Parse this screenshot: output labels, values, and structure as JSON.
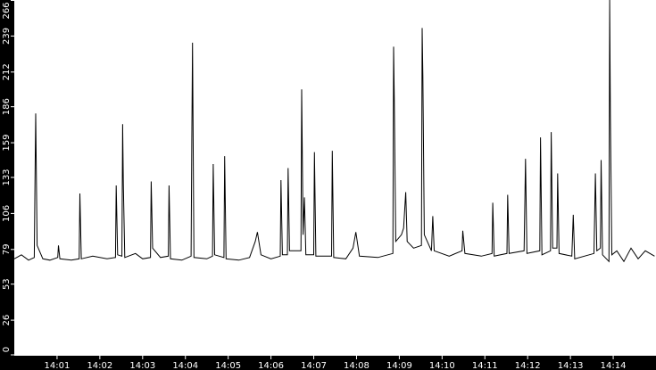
{
  "chart_data": {
    "type": "line",
    "title": "",
    "xlabel": "",
    "ylabel": "",
    "ylim": [
      0,
      266
    ],
    "xlim": [
      "14:00:00",
      "14:15:00"
    ],
    "grid": false,
    "legend": "none",
    "y_ticks": [
      "0",
      "26",
      "53",
      "79",
      "106",
      "133",
      "159",
      "186",
      "212",
      "239",
      "266"
    ],
    "x_ticks": [
      "14:01",
      "14:02",
      "14:03",
      "14:04",
      "14:05",
      "14:06",
      "14:07",
      "14:08",
      "14:09",
      "14:10",
      "14:11",
      "14:12",
      "14:13",
      "14:14"
    ],
    "colors": {
      "axis_background": "#000000",
      "plot_background": "#ffffff",
      "line": "#000000",
      "tick_text": "#ffffff"
    },
    "series": [
      {
        "points": [
          [
            "14:00:00",
            72
          ],
          [
            "14:00:10",
            75
          ],
          [
            "14:00:20",
            71
          ],
          [
            "14:00:28",
            73
          ],
          [
            "14:00:29",
            130
          ],
          [
            "14:00:30",
            181
          ],
          [
            "14:00:32",
            82
          ],
          [
            "14:00:40",
            72
          ],
          [
            "14:00:50",
            71
          ],
          [
            "14:01:01",
            73
          ],
          [
            "14:01:02",
            82
          ],
          [
            "14:01:04",
            72
          ],
          [
            "14:01:20",
            71
          ],
          [
            "14:01:31",
            72
          ],
          [
            "14:01:32",
            121
          ],
          [
            "14:01:34",
            72
          ],
          [
            "14:01:50",
            74
          ],
          [
            "14:02:10",
            72
          ],
          [
            "14:02:22",
            73
          ],
          [
            "14:02:23",
            127
          ],
          [
            "14:02:25",
            75
          ],
          [
            "14:02:31",
            74
          ],
          [
            "14:02:32",
            173
          ],
          [
            "14:02:33",
            128
          ],
          [
            "14:02:35",
            73
          ],
          [
            "14:02:50",
            76
          ],
          [
            "14:03:00",
            72
          ],
          [
            "14:03:11",
            73
          ],
          [
            "14:03:12",
            130
          ],
          [
            "14:03:14",
            80
          ],
          [
            "14:03:25",
            73
          ],
          [
            "14:03:36",
            74
          ],
          [
            "14:03:37",
            127
          ],
          [
            "14:03:39",
            72
          ],
          [
            "14:03:55",
            71
          ],
          [
            "14:04:08",
            74
          ],
          [
            "14:04:09",
            160
          ],
          [
            "14:04:10",
            234
          ],
          [
            "14:04:12",
            73
          ],
          [
            "14:04:30",
            72
          ],
          [
            "14:04:38",
            74
          ],
          [
            "14:04:39",
            143
          ],
          [
            "14:04:41",
            75
          ],
          [
            "14:04:54",
            73
          ],
          [
            "14:04:55",
            149
          ],
          [
            "14:04:57",
            72
          ],
          [
            "14:05:15",
            71
          ],
          [
            "14:05:30",
            73
          ],
          [
            "14:05:38",
            85
          ],
          [
            "14:05:41",
            92
          ],
          [
            "14:05:46",
            75
          ],
          [
            "14:06:00",
            72
          ],
          [
            "14:06:13",
            74
          ],
          [
            "14:06:14",
            131
          ],
          [
            "14:06:16",
            75
          ],
          [
            "14:06:23",
            75
          ],
          [
            "14:06:24",
            140
          ],
          [
            "14:06:26",
            78
          ],
          [
            "14:06:42",
            78
          ],
          [
            "14:06:43",
            199
          ],
          [
            "14:06:45",
            90
          ],
          [
            "14:06:47",
            118
          ],
          [
            "14:06:49",
            75
          ],
          [
            "14:07:00",
            75
          ],
          [
            "14:07:01",
            152
          ],
          [
            "14:07:03",
            74
          ],
          [
            "14:07:25",
            74
          ],
          [
            "14:07:26",
            153
          ],
          [
            "14:07:28",
            73
          ],
          [
            "14:07:45",
            72
          ],
          [
            "14:07:55",
            80
          ],
          [
            "14:07:59",
            92
          ],
          [
            "14:08:04",
            74
          ],
          [
            "14:08:30",
            73
          ],
          [
            "14:08:51",
            76
          ],
          [
            "14:08:52",
            231
          ],
          [
            "14:08:53",
            190
          ],
          [
            "14:08:55",
            85
          ],
          [
            "14:09:03",
            90
          ],
          [
            "14:09:06",
            95
          ],
          [
            "14:09:09",
            122
          ],
          [
            "14:09:11",
            85
          ],
          [
            "14:09:20",
            80
          ],
          [
            "14:09:31",
            82
          ],
          [
            "14:09:32",
            245
          ],
          [
            "14:09:33",
            209
          ],
          [
            "14:09:35",
            90
          ],
          [
            "14:09:45",
            78
          ],
          [
            "14:09:47",
            104
          ],
          [
            "14:09:49",
            78
          ],
          [
            "14:10:10",
            74
          ],
          [
            "14:10:28",
            78
          ],
          [
            "14:10:29",
            93
          ],
          [
            "14:10:32",
            76
          ],
          [
            "14:10:55",
            74
          ],
          [
            "14:11:10",
            76
          ],
          [
            "14:11:11",
            114
          ],
          [
            "14:11:13",
            74
          ],
          [
            "14:11:31",
            76
          ],
          [
            "14:11:32",
            120
          ],
          [
            "14:11:34",
            76
          ],
          [
            "14:11:55",
            78
          ],
          [
            "14:11:57",
            147
          ],
          [
            "14:11:59",
            76
          ],
          [
            "14:12:17",
            78
          ],
          [
            "14:12:18",
            163
          ],
          [
            "14:12:20",
            75
          ],
          [
            "14:12:32",
            78
          ],
          [
            "14:12:33",
            167
          ],
          [
            "14:12:35",
            80
          ],
          [
            "14:12:41",
            80
          ],
          [
            "14:12:42",
            136
          ],
          [
            "14:12:44",
            76
          ],
          [
            "14:13:02",
            74
          ],
          [
            "14:13:04",
            105
          ],
          [
            "14:13:06",
            72
          ],
          [
            "14:13:33",
            76
          ],
          [
            "14:13:35",
            136
          ],
          [
            "14:13:37",
            78
          ],
          [
            "14:13:42",
            80
          ],
          [
            "14:13:43",
            146
          ],
          [
            "14:13:45",
            75
          ],
          [
            "14:13:54",
            70
          ],
          [
            "14:13:55",
            266
          ],
          [
            "14:13:56",
            179
          ],
          [
            "14:13:58",
            75
          ],
          [
            "14:14:05",
            78
          ],
          [
            "14:14:15",
            70
          ],
          [
            "14:14:25",
            80
          ],
          [
            "14:14:35",
            72
          ],
          [
            "14:14:45",
            78
          ],
          [
            "14:14:58",
            74
          ]
        ]
      }
    ]
  }
}
